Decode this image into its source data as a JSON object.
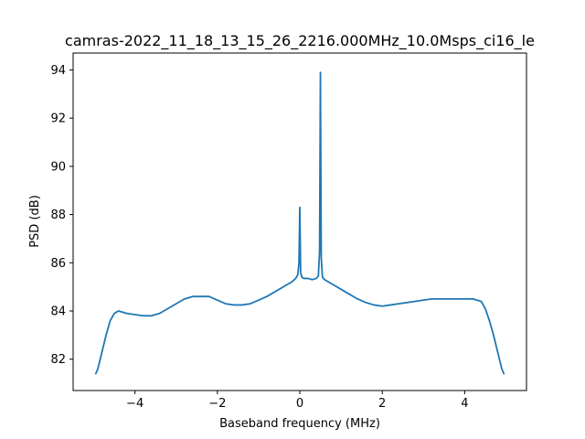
{
  "chart_data": {
    "type": "line",
    "title": "camras-2022_11_18_13_15_26_2216.000MHz_10.0Msps_ci16_le",
    "xlabel": "Baseband frequency (MHz)",
    "ylabel": "PSD (dB)",
    "xlim": [
      -5.5,
      5.5
    ],
    "ylim": [
      80.7,
      94.7
    ],
    "xticks": [
      -4,
      -2,
      0,
      2,
      4
    ],
    "yticks": [
      82,
      84,
      86,
      88,
      90,
      92,
      94
    ],
    "xtick_labels": [
      "−4",
      "−2",
      "0",
      "2",
      "4"
    ],
    "ytick_labels": [
      "82",
      "84",
      "86",
      "88",
      "90",
      "92",
      "94"
    ],
    "grid": false,
    "color": "#1f77b4",
    "series": [
      {
        "x": [
          -4.95,
          -4.9,
          -4.8,
          -4.7,
          -4.6,
          -4.5,
          -4.4,
          -4.2,
          -4.0,
          -3.8,
          -3.6,
          -3.4,
          -3.2,
          -3.0,
          -2.8,
          -2.6,
          -2.4,
          -2.2,
          -2.0,
          -1.8,
          -1.6,
          -1.4,
          -1.2,
          -1.0,
          -0.8,
          -0.6,
          -0.4,
          -0.2,
          -0.1,
          -0.05,
          -0.02,
          0.0,
          0.02,
          0.05,
          0.1,
          0.2,
          0.3,
          0.4,
          0.45,
          0.48,
          0.5,
          0.52,
          0.55,
          0.6,
          0.8,
          1.0,
          1.2,
          1.4,
          1.6,
          1.8,
          2.0,
          2.2,
          2.4,
          2.6,
          2.8,
          3.0,
          3.2,
          3.4,
          3.6,
          3.8,
          4.0,
          4.2,
          4.4,
          4.5,
          4.6,
          4.7,
          4.8,
          4.9,
          4.95
        ],
        "y": [
          81.4,
          81.6,
          82.3,
          83.0,
          83.6,
          83.9,
          84.0,
          83.9,
          83.85,
          83.8,
          83.8,
          83.9,
          84.1,
          84.3,
          84.5,
          84.6,
          84.6,
          84.6,
          84.45,
          84.3,
          84.25,
          84.25,
          84.3,
          84.45,
          84.6,
          84.8,
          85.0,
          85.2,
          85.35,
          85.5,
          86.0,
          88.3,
          85.6,
          85.4,
          85.35,
          85.35,
          85.3,
          85.35,
          85.45,
          86.5,
          93.9,
          86.2,
          85.4,
          85.3,
          85.1,
          84.9,
          84.7,
          84.5,
          84.35,
          84.25,
          84.2,
          84.25,
          84.3,
          84.35,
          84.4,
          84.45,
          84.5,
          84.5,
          84.5,
          84.5,
          84.5,
          84.5,
          84.4,
          84.1,
          83.6,
          83.0,
          82.3,
          81.6,
          81.4
        ]
      }
    ]
  }
}
